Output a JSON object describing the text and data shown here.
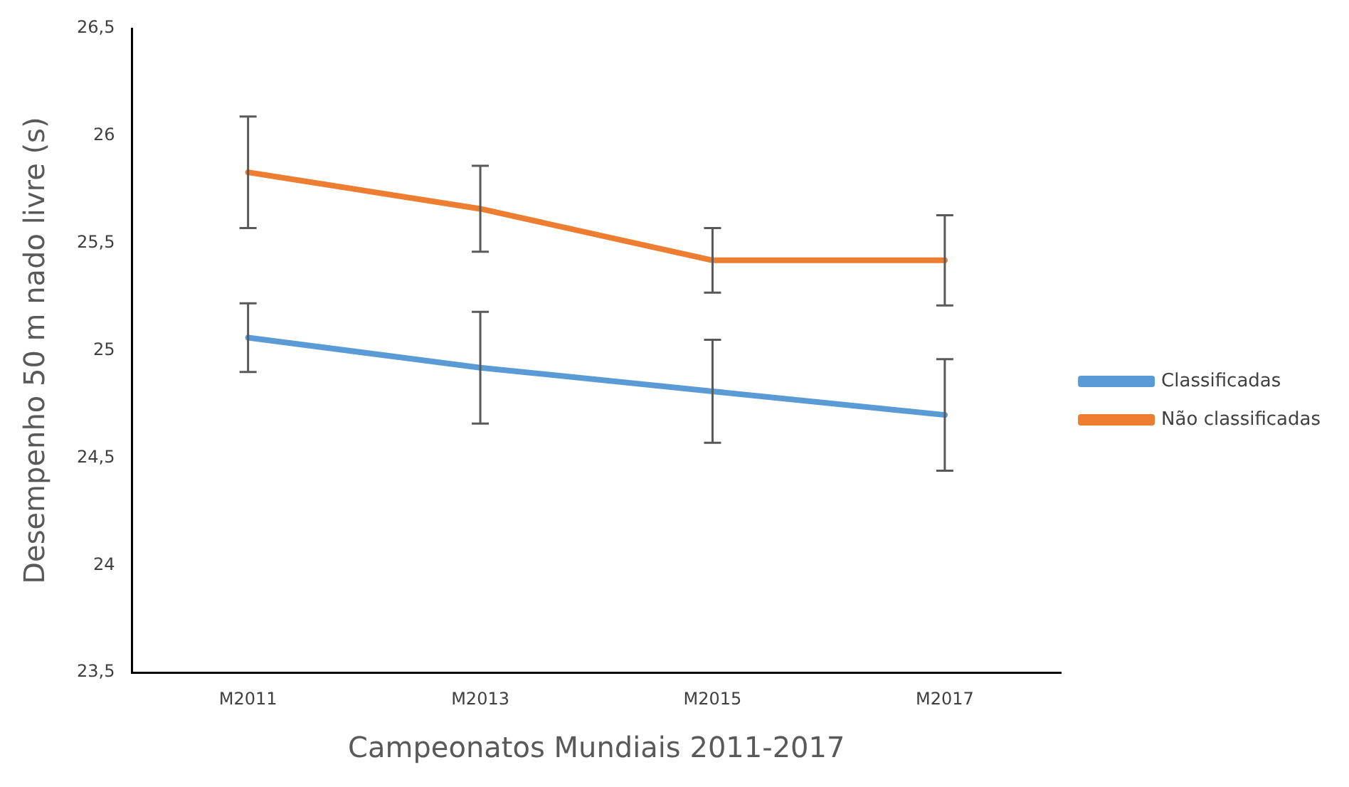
{
  "chart_data": {
    "type": "line",
    "xlabel": "Campeonatos Mundiais 2011-2017",
    "ylabel": "Desempenho 50 m nado livre (s)",
    "categories": [
      "M2011",
      "M2013",
      "M2015",
      "M2017"
    ],
    "ylim": [
      23.5,
      26.5
    ],
    "yticks": [
      {
        "value": 23.5,
        "label": "23,5"
      },
      24,
      {
        "value": 24.5,
        "label": "24,5"
      },
      25,
      {
        "value": 25.5,
        "label": "25,5"
      },
      26,
      {
        "value": 26.5,
        "label": "26,5"
      }
    ],
    "series": [
      {
        "name": "Classificadas",
        "color": "#5b9bd5",
        "values": [
          25.06,
          24.92,
          24.81,
          24.7
        ],
        "errors": [
          0.16,
          0.26,
          0.24,
          0.26
        ]
      },
      {
        "name": "Não classificadas",
        "color": "#ed7d31",
        "values": [
          25.83,
          25.66,
          25.42,
          25.42
        ],
        "errors": [
          0.26,
          0.2,
          0.15,
          0.21
        ]
      }
    ],
    "grid": false,
    "legend": "right",
    "marker": "none",
    "line_style": "solid"
  }
}
